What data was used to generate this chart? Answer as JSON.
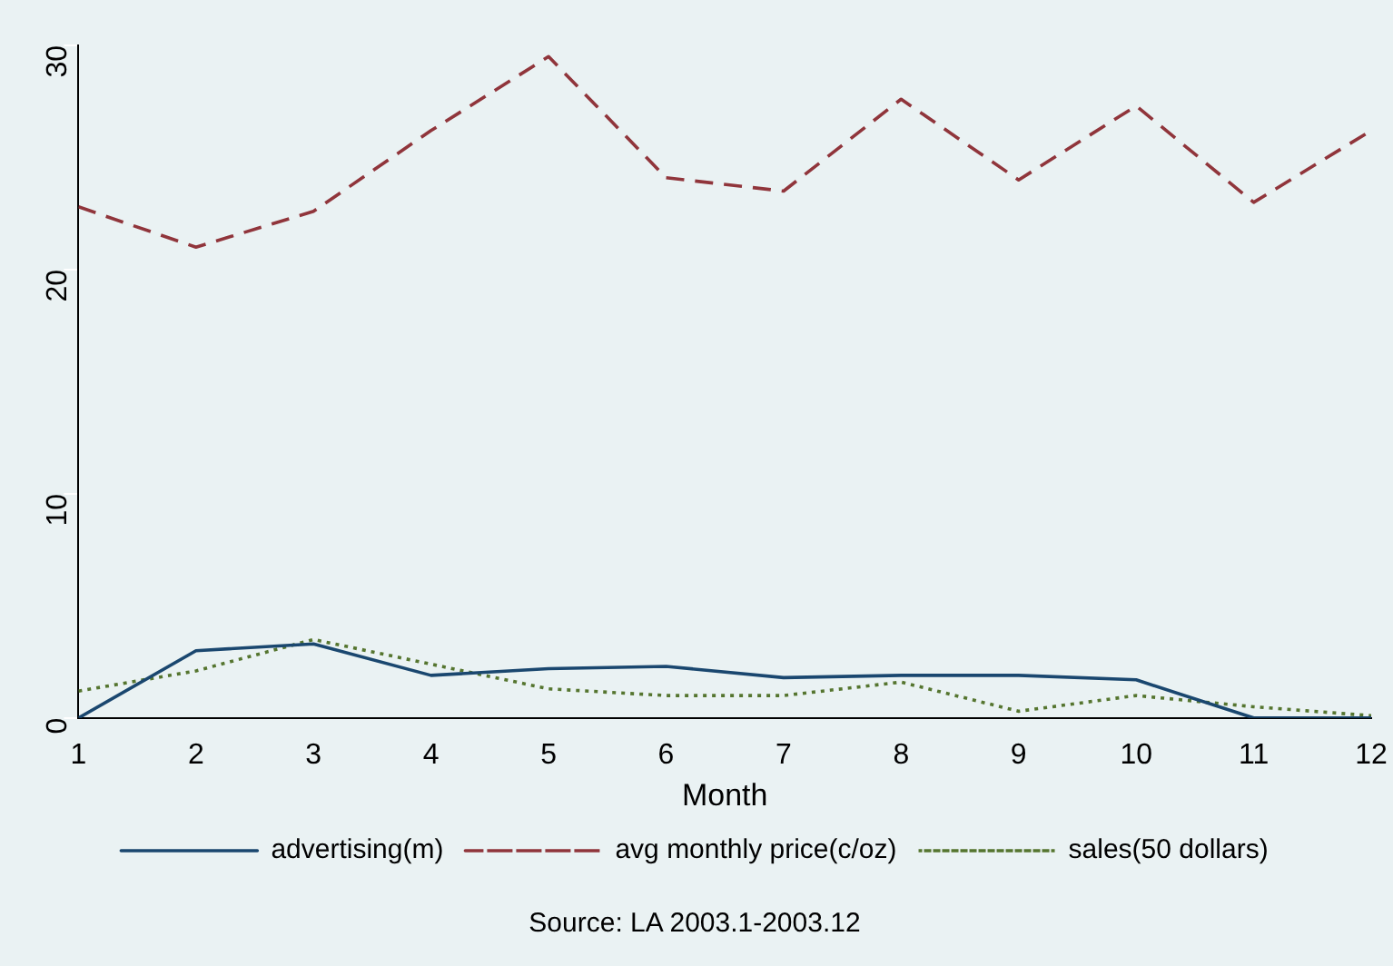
{
  "chart_data": {
    "type": "line",
    "xlabel": "Month",
    "x": [
      1,
      2,
      3,
      4,
      5,
      6,
      7,
      8,
      9,
      10,
      11,
      12
    ],
    "xlim": [
      1,
      12
    ],
    "xticks": [
      1,
      2,
      3,
      4,
      5,
      6,
      7,
      8,
      9,
      10,
      11,
      12
    ],
    "ylim": [
      0,
      30
    ],
    "yticks": [
      0,
      10,
      20,
      30
    ],
    "grid": false,
    "legend": "bottom",
    "marker": "none",
    "series": [
      {
        "name": "advertising(m)",
        "color": "#1a476f",
        "line_style": "solid",
        "values": [
          0,
          3.0,
          3.3,
          1.9,
          2.2,
          2.3,
          1.8,
          1.9,
          1.9,
          1.7,
          0,
          0
        ]
      },
      {
        "name": "avg monthly price(c/oz)",
        "color": "#90353b",
        "line_style": "dashed",
        "values": [
          22.8,
          21.0,
          22.6,
          26.2,
          29.5,
          24.1,
          23.5,
          27.6,
          24.0,
          27.3,
          23.0,
          26.2
        ]
      },
      {
        "name": "sales(50 dollars)",
        "color": "#55752f",
        "line_style": "dotted",
        "values": [
          1.2,
          2.1,
          3.5,
          2.4,
          1.3,
          1.0,
          1.0,
          1.6,
          0.3,
          1.0,
          0.5,
          0.1
        ]
      }
    ],
    "annotations": [
      "Source: LA 2003.1-2003.12"
    ]
  }
}
